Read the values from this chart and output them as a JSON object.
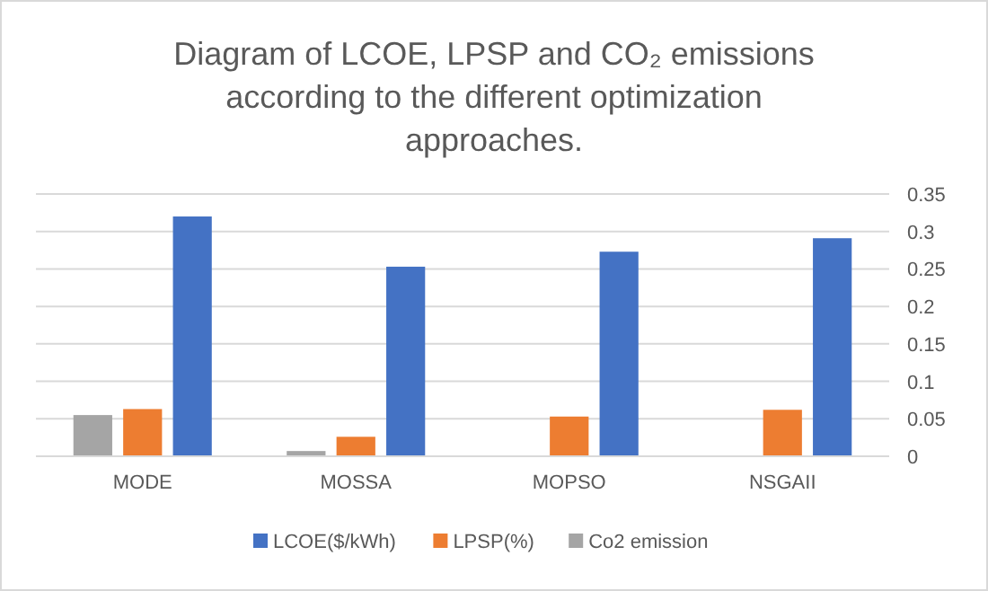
{
  "chart_data": {
    "type": "bar",
    "title": "Diagram of LCOE, LPSP and CO₂ emissions according to the different optimization approaches.",
    "categories": [
      "MODE",
      "MOSSA",
      "MOPSO",
      "NSGAII"
    ],
    "series": [
      {
        "name": "LCOE($/kWh)",
        "color": "#4472c4",
        "values": [
          0.32,
          0.253,
          0.273,
          0.291
        ]
      },
      {
        "name": "LPSP(%)",
        "color": "#ed7d31",
        "values": [
          0.063,
          0.026,
          0.053,
          0.062
        ]
      },
      {
        "name": "Co2 emission",
        "color": "#a5a5a5",
        "values": [
          0.055,
          0.007,
          0,
          0
        ]
      }
    ],
    "ylim": [
      0,
      0.35
    ],
    "yticks": [
      0,
      0.05,
      0.1,
      0.15,
      0.2,
      0.25,
      0.3,
      0.35
    ],
    "grid": "y",
    "legend": "bottom"
  }
}
